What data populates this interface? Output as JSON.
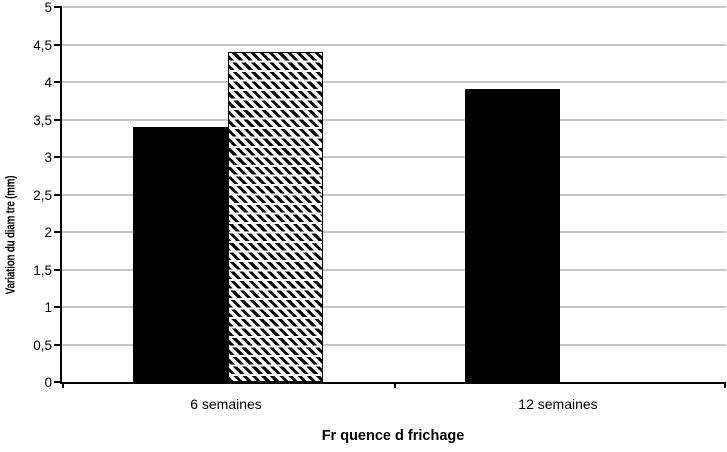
{
  "chart_data": {
    "type": "bar",
    "title": "",
    "xlabel": "Fr quence d frichage",
    "ylabel": "Variation du diam tre (mm)",
    "categories": [
      "6 semaines",
      "12 semaines"
    ],
    "series": [
      {
        "name": "solid-black-bar-series",
        "pattern": "solid",
        "color": "#000000",
        "values": [
          3.4,
          3.9
        ]
      },
      {
        "name": "hatched-bar-series",
        "pattern": "diagonal-hatch",
        "color": "#000000",
        "values": [
          4.4,
          null
        ]
      }
    ],
    "ylim": [
      0,
      5
    ],
    "ytick_step": 0.5,
    "ytick_labels": [
      "0",
      "0,5",
      "1",
      "1,5",
      "2",
      "2,5",
      "3",
      "3,5",
      "4",
      "4,5",
      "5"
    ],
    "grid": true,
    "legend": "none",
    "colors": {
      "gridline": "#c6c6c6",
      "axis": "#000000",
      "background": "#ffffff",
      "bar_fill": "#000000"
    }
  }
}
